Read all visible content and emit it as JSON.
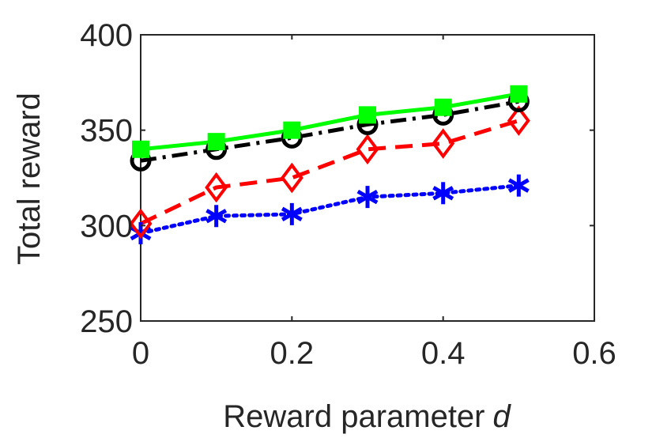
{
  "chart_data": {
    "type": "line",
    "title": "",
    "xlabel": "Reward parameter",
    "xlabel_symbol": "d",
    "ylabel": "Total reward",
    "xlim": [
      0,
      0.6
    ],
    "ylim": [
      250,
      400
    ],
    "x_ticks": [
      "0",
      "0.2",
      "0.4",
      "0.6"
    ],
    "y_ticks": [
      "250",
      "300",
      "350",
      "400"
    ],
    "grid": false,
    "x": [
      0,
      0.1,
      0.2,
      0.3,
      0.4,
      0.5
    ],
    "series": [
      {
        "values": [
          340,
          344,
          350,
          358,
          362,
          369
        ],
        "color": "#00ff00",
        "line_style": "solid",
        "marker": "square"
      },
      {
        "values": [
          334,
          340,
          346,
          353,
          358,
          365
        ],
        "color": "#000000",
        "line_style": "dashdot",
        "marker": "circle"
      },
      {
        "values": [
          301,
          320,
          325,
          340,
          343,
          355
        ],
        "color": "#ff0000",
        "line_style": "dashed",
        "marker": "diamond"
      },
      {
        "values": [
          296,
          305,
          306,
          315,
          317,
          321
        ],
        "color": "#0000ff",
        "line_style": "dotted",
        "marker": "asterisk"
      }
    ]
  }
}
